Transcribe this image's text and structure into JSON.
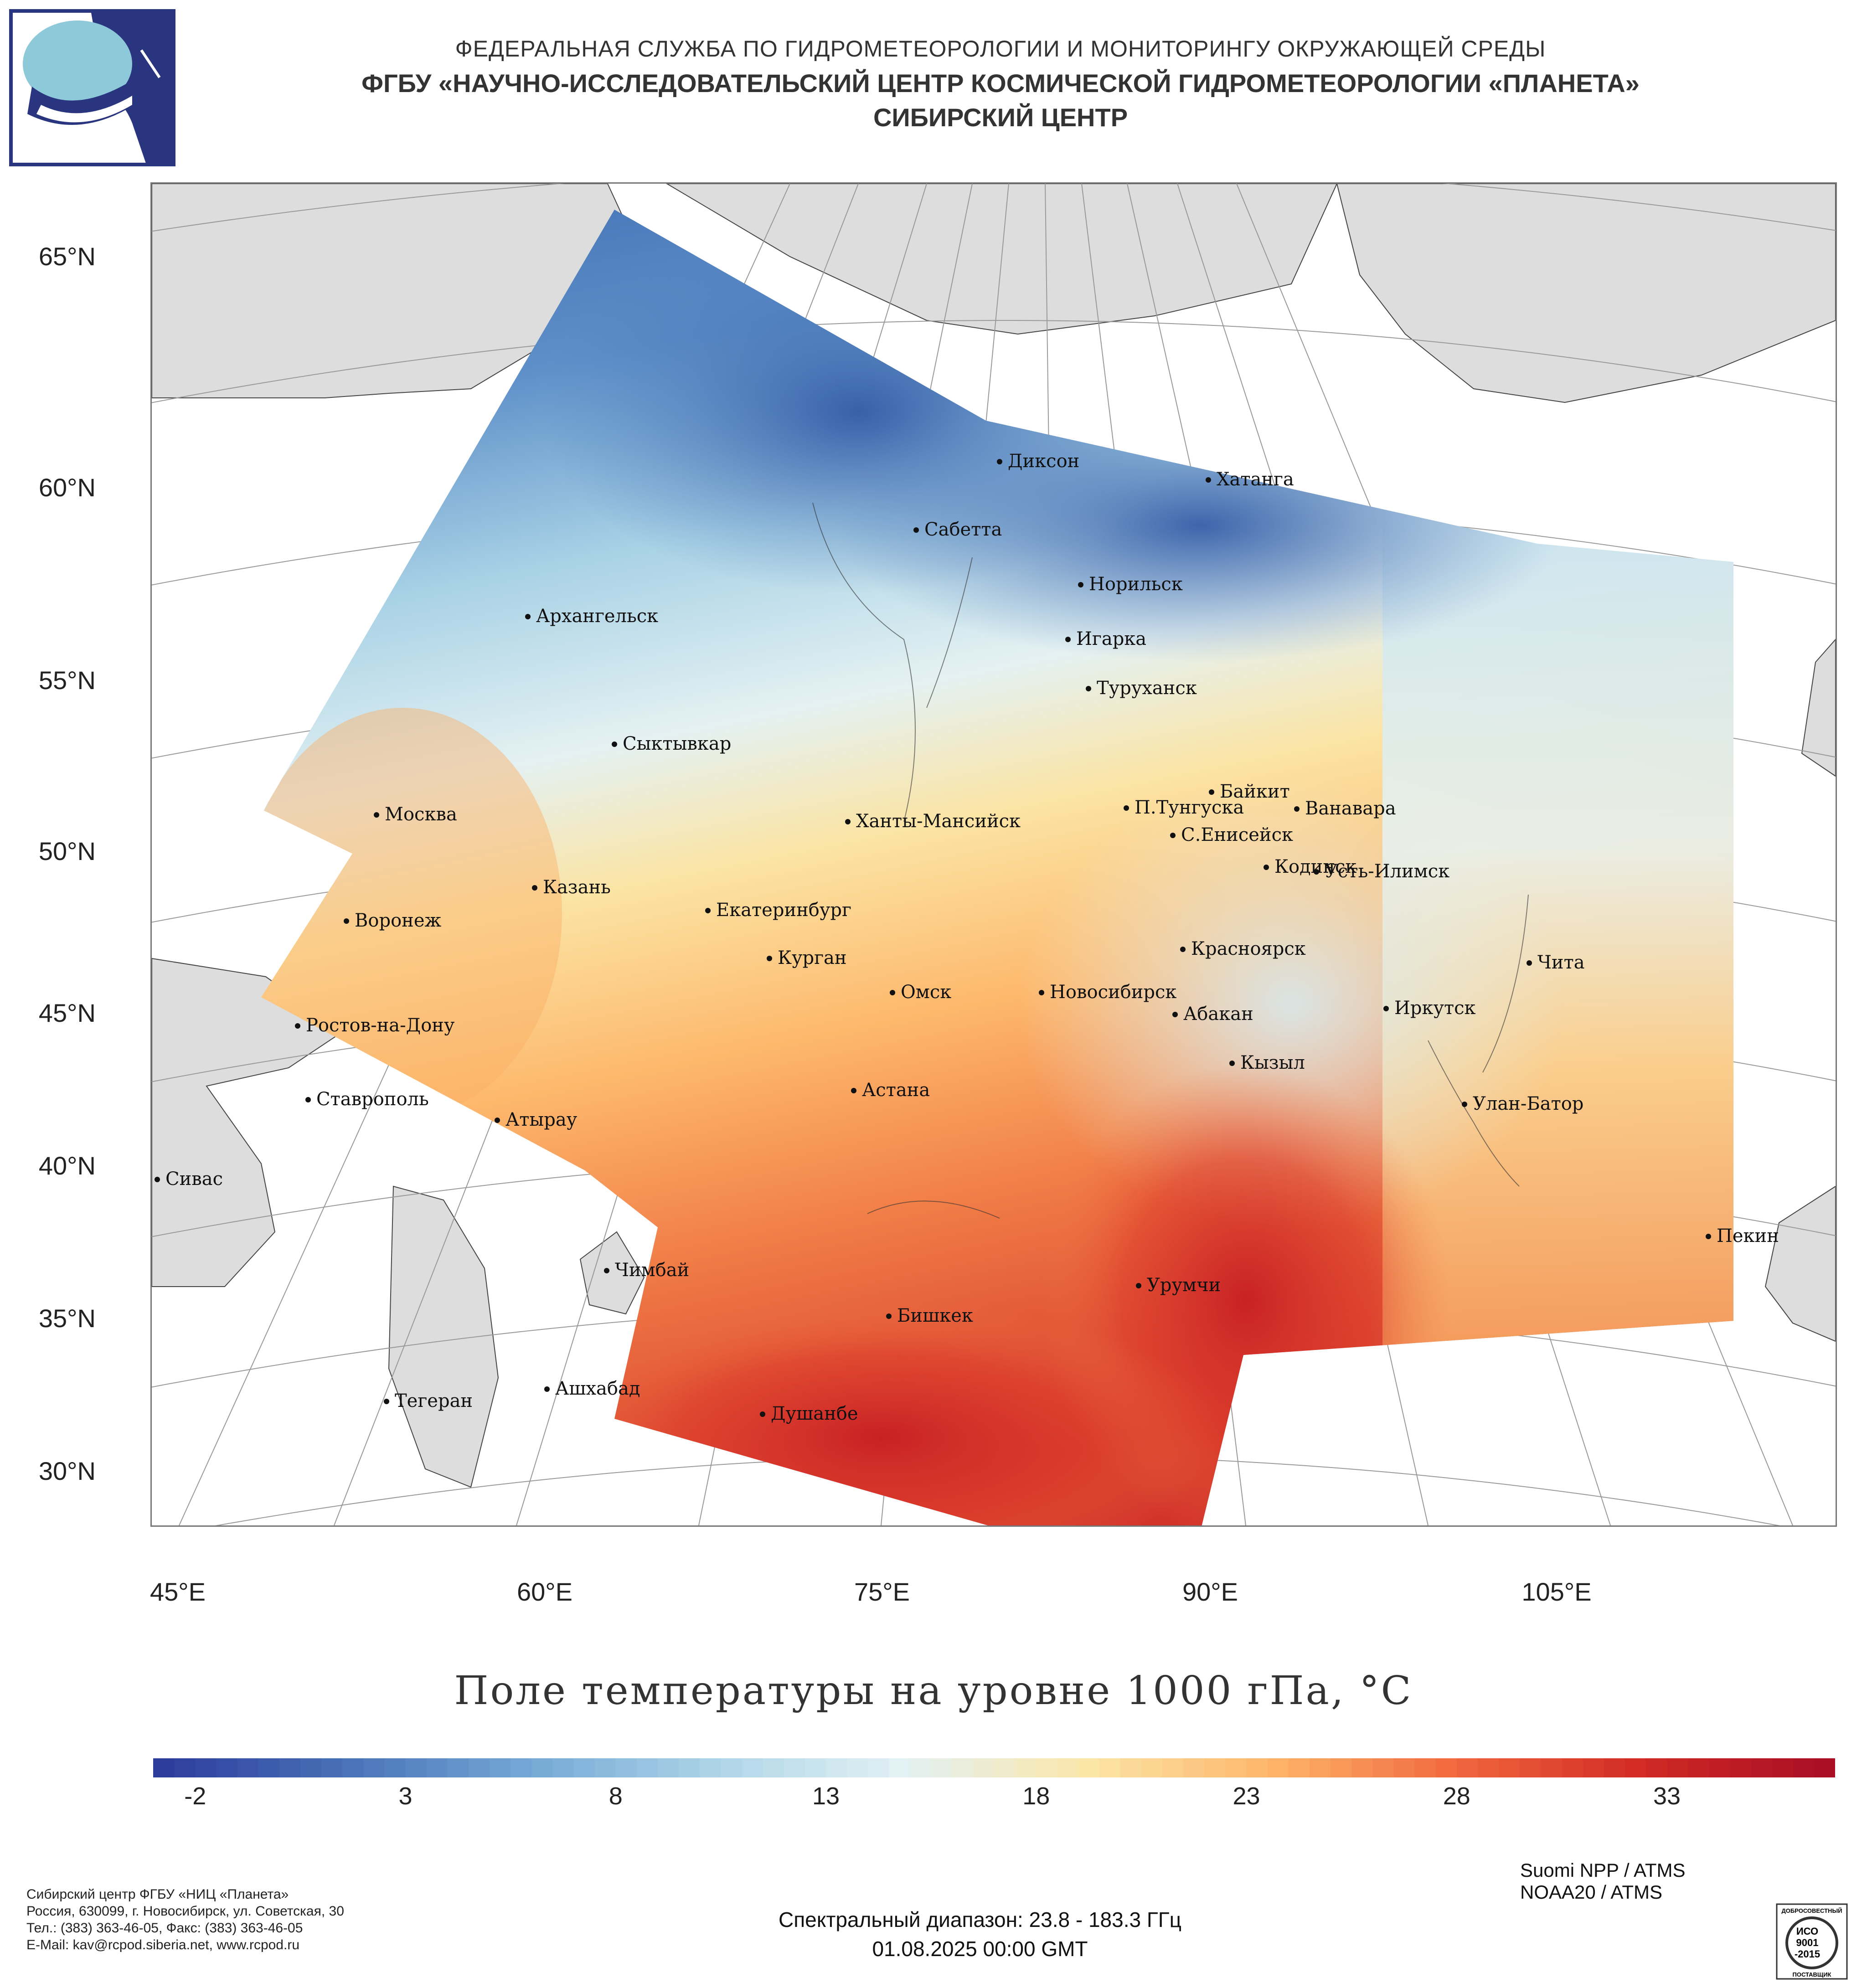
{
  "header": {
    "line1": "ФЕДЕРАЛЬНАЯ СЛУЖБА ПО ГИДРОМЕТЕОРОЛОГИИ И МОНИТОРИНГУ ОКРУЖАЮЩЕЙ СРЕДЫ",
    "line2": "ФГБУ «НАУЧНО-ИССЛЕДОВАТЕЛЬСКИЙ ЦЕНТР КОСМИЧЕСКОЙ ГИДРОМЕТЕОРОЛОГИИ «ПЛАНЕТА»",
    "line3": "СИБИРСКИЙ ЦЕНТР"
  },
  "map": {
    "lat_labels": [
      "65°N",
      "60°N",
      "55°N",
      "50°N",
      "45°N",
      "40°N",
      "35°N",
      "30°N"
    ],
    "lon_labels": [
      "45°E",
      "60°E",
      "75°E",
      "90°E",
      "105°E"
    ],
    "cities": [
      "Диксон",
      "Хатанга",
      "Сабетта",
      "Архангельск",
      "Норильск",
      "Игарка",
      "Туруханск",
      "Сыктывкар",
      "Байкит",
      "Москва",
      "П.Тунгуска",
      "Ванавара",
      "Ханты-Мансийск",
      "С.Енисейск",
      "Казань",
      "Кодинск",
      "Усть-Илимск",
      "Екатеринбург",
      "Воронеж",
      "Красноярск",
      "Курган",
      "Чита",
      "Омск",
      "Новосибирск",
      "Ростов-на-Дону",
      "Иркутск",
      "Абакан",
      "Кызыл",
      "Ставрополь",
      "Астана",
      "Улан-Батор",
      "Атырау",
      "Сивас",
      "Пекин",
      "Чимбай",
      "Урумчи",
      "Бишкек",
      "Ашхабад",
      "Тегеран",
      "Душанбе"
    ],
    "land_color": "#dddddd",
    "ocean_color": "#ffffff"
  },
  "title": "Поле температуры на уровне 1000 гПа, °С",
  "colorbar": {
    "min": -3,
    "max": 37,
    "ticks": [
      "-2",
      "3",
      "8",
      "13",
      "18",
      "23",
      "28",
      "33"
    ],
    "colors": [
      "#2c3d9c",
      "#4a72b8",
      "#76a9d6",
      "#aed5e8",
      "#e2f1f4",
      "#fbe6a8",
      "#fdb56a",
      "#f1683e",
      "#d12a24",
      "#aa0f25"
    ]
  },
  "footer": {
    "org_lines": [
      "Сибирский центр ФГБУ «НИЦ «Планета»",
      "Россия, 630099, г. Новосибирск, ул. Советская, 30",
      "Тел.: (383) 363-46-05, Факс: (383) 363-46-05",
      "E-Mail: kav@rcpod.siberia.net, www.rcpod.ru"
    ],
    "spectral": "Спектральный диапазон: 23.8 - 183.3 ГГц",
    "datetime": "01.08.2025 00:00 GMT",
    "sensors": [
      "Suomi NPP / ATMS",
      "NOAA20 / ATMS"
    ],
    "iso_top": "ДОБРОСОВЕСТНЫЙ",
    "iso_lines": [
      "ИСО",
      "9001",
      "-2015"
    ],
    "iso_bottom": "ПОСТАВЩИК"
  }
}
